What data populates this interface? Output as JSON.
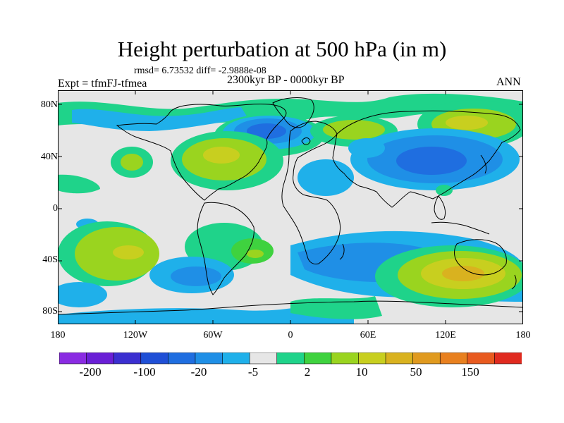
{
  "title": "Height perturbation at 500 hPa (in m)",
  "stats": "rmsd= 6.73532 diff= -2.9888e-08",
  "experiment": "Expt = tfmFJ-tfmea",
  "period": "2300kyr BP - 0000kyr BP",
  "season": "ANN",
  "lat_labels": [
    "80N",
    "40N",
    "0",
    "40S",
    "80S"
  ],
  "lon_labels": [
    "180",
    "120W",
    "60W",
    "0",
    "60E",
    "120E",
    "180"
  ],
  "colorbar": {
    "colors": [
      "#8a2be2",
      "#6a1fd6",
      "#3b2fd0",
      "#1f4fd6",
      "#1f6ee0",
      "#1f8fe6",
      "#1fb0ea",
      "#e6e6e6",
      "#1fd38a",
      "#3fd23f",
      "#9ad41f",
      "#c8cf1f",
      "#d9b21f",
      "#e09a1f",
      "#e8801f",
      "#e85a1f",
      "#e02a1f"
    ],
    "labels": [
      "-200",
      "-100",
      "-20",
      "-5",
      "2",
      "10",
      "50",
      "150"
    ]
  },
  "colors": {
    "land_outline": "#000000",
    "neutral": "#e6e6e6"
  }
}
